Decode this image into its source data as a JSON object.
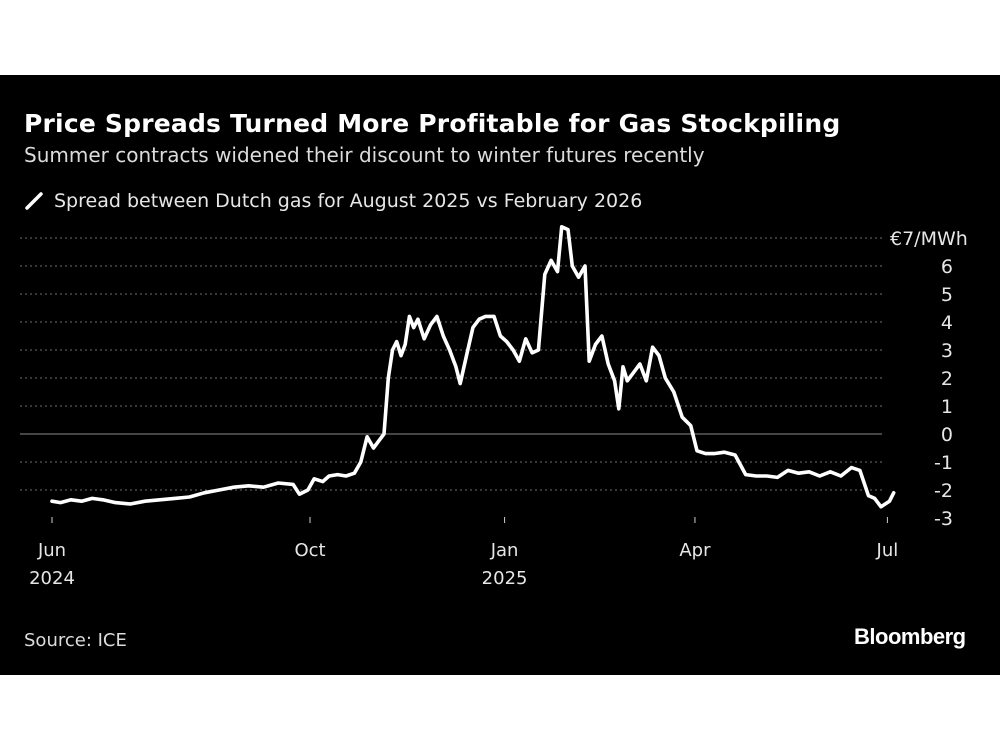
{
  "title": "Price Spreads Turned More Profitable for Gas Stockpiling",
  "subtitle": "Summer contracts widened their discount to winter futures recently",
  "source": "Source: ICE",
  "brand": "Bloomberg",
  "colors": {
    "background": "#000000",
    "line": "#ffffff",
    "grid": "#6e6e6e",
    "text": "#e6e6e6"
  },
  "chart_data": {
    "type": "line",
    "grid": "horizontal dotted",
    "legend_position": "top-left",
    "y_unit_label": "€7/MWh",
    "ylim": [
      -3,
      7
    ],
    "yticks": [
      7,
      6,
      5,
      4,
      3,
      2,
      1,
      0,
      -1,
      -2,
      -3
    ],
    "ytick_labels": [
      "€7/MWh",
      "6",
      "5",
      "4",
      "3",
      "2",
      "1",
      "0",
      "-1",
      "-2",
      "-3"
    ],
    "xlim": [
      "2024-06-01",
      "2025-07-15"
    ],
    "xticks": [
      {
        "date": "2024-06-01",
        "label": "Jun",
        "sublabel": "2024"
      },
      {
        "date": "2024-10-01",
        "label": "Oct",
        "sublabel": ""
      },
      {
        "date": "2025-01-01",
        "label": "Jan",
        "sublabel": "2025"
      },
      {
        "date": "2025-04-01",
        "label": "Apr",
        "sublabel": ""
      },
      {
        "date": "2025-07-01",
        "label": "Jul",
        "sublabel": ""
      }
    ],
    "series": [
      {
        "name": "Spread between Dutch gas for August 2025 vs February 2026",
        "color": "#ffffff",
        "points": [
          [
            "2024-06-01",
            -2.4
          ],
          [
            "2024-06-05",
            -2.45
          ],
          [
            "2024-06-10",
            -2.35
          ],
          [
            "2024-06-15",
            -2.4
          ],
          [
            "2024-06-20",
            -2.3
          ],
          [
            "2024-06-25",
            -2.35
          ],
          [
            "2024-07-01",
            -2.45
          ],
          [
            "2024-07-08",
            -2.5
          ],
          [
            "2024-07-15",
            -2.4
          ],
          [
            "2024-07-22",
            -2.35
          ],
          [
            "2024-07-29",
            -2.3
          ],
          [
            "2024-08-05",
            -2.25
          ],
          [
            "2024-08-12",
            -2.1
          ],
          [
            "2024-08-19",
            -2.0
          ],
          [
            "2024-08-26",
            -1.9
          ],
          [
            "2024-09-02",
            -1.85
          ],
          [
            "2024-09-09",
            -1.9
          ],
          [
            "2024-09-16",
            -1.75
          ],
          [
            "2024-09-23",
            -1.8
          ],
          [
            "2024-09-26",
            -2.15
          ],
          [
            "2024-09-30",
            -2.0
          ],
          [
            "2024-10-03",
            -1.6
          ],
          [
            "2024-10-07",
            -1.7
          ],
          [
            "2024-10-10",
            -1.5
          ],
          [
            "2024-10-14",
            -1.45
          ],
          [
            "2024-10-18",
            -1.5
          ],
          [
            "2024-10-22",
            -1.4
          ],
          [
            "2024-10-25",
            -1.0
          ],
          [
            "2024-10-28",
            -0.1
          ],
          [
            "2024-10-31",
            -0.5
          ],
          [
            "2024-11-03",
            -0.2
          ],
          [
            "2024-11-05",
            0.0
          ],
          [
            "2024-11-07",
            2.0
          ],
          [
            "2024-11-09",
            3.0
          ],
          [
            "2024-11-11",
            3.3
          ],
          [
            "2024-11-13",
            2.8
          ],
          [
            "2024-11-15",
            3.2
          ],
          [
            "2024-11-17",
            4.2
          ],
          [
            "2024-11-19",
            3.8
          ],
          [
            "2024-11-21",
            4.1
          ],
          [
            "2024-11-24",
            3.4
          ],
          [
            "2024-11-27",
            3.9
          ],
          [
            "2024-11-30",
            4.2
          ],
          [
            "2024-12-03",
            3.5
          ],
          [
            "2024-12-06",
            3.0
          ],
          [
            "2024-12-09",
            2.4
          ],
          [
            "2024-12-11",
            1.8
          ],
          [
            "2024-12-14",
            2.8
          ],
          [
            "2024-12-17",
            3.8
          ],
          [
            "2024-12-20",
            4.1
          ],
          [
            "2024-12-23",
            4.2
          ],
          [
            "2024-12-27",
            4.2
          ],
          [
            "2024-12-30",
            3.5
          ],
          [
            "2025-01-02",
            3.3
          ],
          [
            "2025-01-05",
            3.0
          ],
          [
            "2025-01-08",
            2.6
          ],
          [
            "2025-01-11",
            3.4
          ],
          [
            "2025-01-14",
            2.9
          ],
          [
            "2025-01-17",
            3.0
          ],
          [
            "2025-01-20",
            5.7
          ],
          [
            "2025-01-23",
            6.2
          ],
          [
            "2025-01-26",
            5.8
          ],
          [
            "2025-01-28",
            7.4
          ],
          [
            "2025-01-31",
            7.3
          ],
          [
            "2025-02-02",
            6.0
          ],
          [
            "2025-02-05",
            5.6
          ],
          [
            "2025-02-08",
            6.0
          ],
          [
            "2025-02-10",
            2.6
          ],
          [
            "2025-02-13",
            3.2
          ],
          [
            "2025-02-16",
            3.5
          ],
          [
            "2025-02-19",
            2.5
          ],
          [
            "2025-02-22",
            1.9
          ],
          [
            "2025-02-24",
            0.9
          ],
          [
            "2025-02-26",
            2.4
          ],
          [
            "2025-02-28",
            1.9
          ],
          [
            "2025-03-03",
            2.2
          ],
          [
            "2025-03-06",
            2.5
          ],
          [
            "2025-03-09",
            1.9
          ],
          [
            "2025-03-12",
            3.1
          ],
          [
            "2025-03-15",
            2.8
          ],
          [
            "2025-03-18",
            2.0
          ],
          [
            "2025-03-22",
            1.5
          ],
          [
            "2025-03-26",
            0.6
          ],
          [
            "2025-03-30",
            0.3
          ],
          [
            "2025-04-02",
            -0.6
          ],
          [
            "2025-04-06",
            -0.7
          ],
          [
            "2025-04-10",
            -0.7
          ],
          [
            "2025-04-15",
            -0.65
          ],
          [
            "2025-04-20",
            -0.75
          ],
          [
            "2025-04-25",
            -1.45
          ],
          [
            "2025-04-30",
            -1.5
          ],
          [
            "2025-05-05",
            -1.5
          ],
          [
            "2025-05-10",
            -1.55
          ],
          [
            "2025-05-15",
            -1.3
          ],
          [
            "2025-05-20",
            -1.4
          ],
          [
            "2025-05-25",
            -1.35
          ],
          [
            "2025-05-30",
            -1.5
          ],
          [
            "2025-06-04",
            -1.35
          ],
          [
            "2025-06-09",
            -1.5
          ],
          [
            "2025-06-14",
            -1.2
          ],
          [
            "2025-06-18",
            -1.3
          ],
          [
            "2025-06-22",
            -2.2
          ],
          [
            "2025-06-25",
            -2.3
          ],
          [
            "2025-06-28",
            -2.6
          ],
          [
            "2025-07-02",
            -2.4
          ],
          [
            "2025-07-04",
            -2.1
          ]
        ]
      }
    ]
  }
}
